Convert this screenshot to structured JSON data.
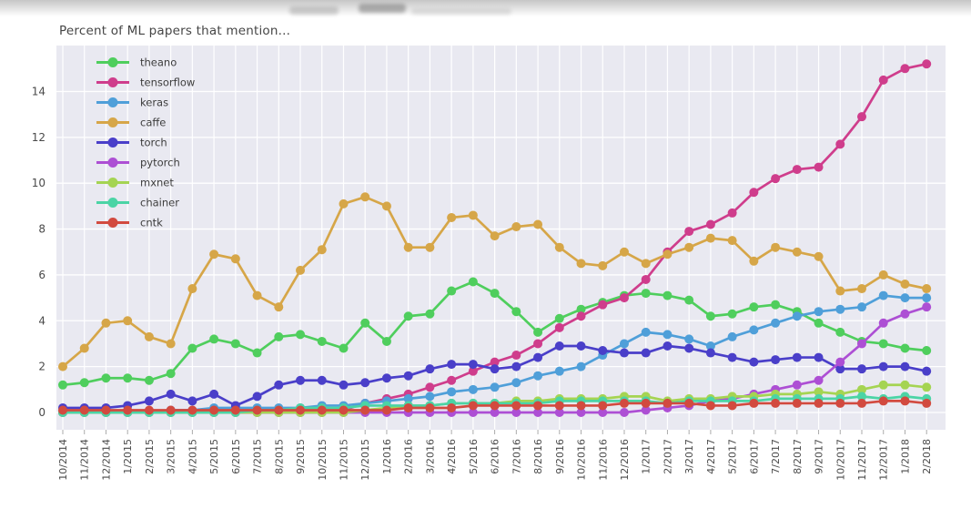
{
  "chart_data": {
    "type": "line",
    "title": "Percent of ML papers that mention...",
    "xlabel": "",
    "ylabel": "",
    "y_ticks": [
      0,
      2,
      4,
      6,
      8,
      10,
      12,
      14
    ],
    "ylim": [
      -0.75,
      16
    ],
    "grid": true,
    "legend_position": "upper left",
    "plot_bg_color": "#e9e9f1",
    "grid_color": "#ffffff",
    "tick_label_color": "#4a4a4a",
    "legend_text_color": "#3d3d3d",
    "categories": [
      "10/2014",
      "11/2014",
      "12/2014",
      "1/2015",
      "2/2015",
      "3/2015",
      "4/2015",
      "5/2015",
      "6/2015",
      "7/2015",
      "8/2015",
      "9/2015",
      "10/2015",
      "11/2015",
      "12/2015",
      "1/2016",
      "2/2016",
      "3/2016",
      "4/2016",
      "5/2016",
      "6/2016",
      "7/2016",
      "8/2016",
      "9/2016",
      "10/2016",
      "11/2016",
      "12/2016",
      "1/2017",
      "2/2017",
      "3/2017",
      "4/2017",
      "5/2017",
      "6/2017",
      "7/2017",
      "8/2017",
      "9/2017",
      "10/2017",
      "11/2017",
      "12/2017",
      "1/2018",
      "2/2018"
    ],
    "series": [
      {
        "name": "theano",
        "color": "#4fce5d",
        "values": [
          1.2,
          1.3,
          1.5,
          1.5,
          1.4,
          1.7,
          2.8,
          3.2,
          3.0,
          2.6,
          3.3,
          3.4,
          3.1,
          2.8,
          3.9,
          3.1,
          4.2,
          4.3,
          5.3,
          5.7,
          5.2,
          4.4,
          3.5,
          4.1,
          4.5,
          4.8,
          5.1,
          5.2,
          5.1,
          4.9,
          4.2,
          4.3,
          4.6,
          4.7,
          4.4,
          3.9,
          3.5,
          3.1,
          3.0,
          2.8,
          2.7
        ]
      },
      {
        "name": "tensorflow",
        "color": "#cf3d8c",
        "values": [
          0,
          0,
          0,
          0,
          0,
          0,
          0,
          0,
          0,
          0,
          0,
          0,
          0,
          0.1,
          0.4,
          0.6,
          0.8,
          1.1,
          1.4,
          1.8,
          2.2,
          2.5,
          3.0,
          3.7,
          4.2,
          4.7,
          5.0,
          5.8,
          7.0,
          7.9,
          8.2,
          8.7,
          9.6,
          10.2,
          10.6,
          10.7,
          11.7,
          12.9,
          14.5,
          15.0,
          15.2
        ]
      },
      {
        "name": "keras",
        "color": "#4f9fd9",
        "values": [
          0,
          0,
          0,
          0,
          0,
          0.1,
          0.1,
          0.2,
          0.2,
          0.2,
          0.2,
          0.2,
          0.3,
          0.3,
          0.4,
          0.5,
          0.6,
          0.7,
          0.9,
          1.0,
          1.1,
          1.3,
          1.6,
          1.8,
          2.0,
          2.5,
          3.0,
          3.5,
          3.4,
          3.2,
          2.9,
          3.3,
          3.6,
          3.9,
          4.2,
          4.4,
          4.5,
          4.6,
          5.1,
          5.0,
          5.0
        ]
      },
      {
        "name": "caffe",
        "color": "#d6a648",
        "values": [
          2.0,
          2.8,
          3.9,
          4.0,
          3.3,
          3.0,
          5.4,
          6.9,
          6.7,
          5.1,
          4.6,
          6.2,
          7.1,
          9.1,
          9.4,
          9.0,
          7.2,
          7.2,
          8.5,
          8.6,
          7.7,
          8.1,
          8.2,
          7.2,
          6.5,
          6.4,
          7.0,
          6.5,
          6.9,
          7.2,
          7.6,
          7.5,
          6.6,
          7.2,
          7.0,
          6.8,
          5.3,
          5.4,
          6.0,
          5.6,
          5.4
        ]
      },
      {
        "name": "torch",
        "color": "#4a3fc9",
        "values": [
          0.2,
          0.2,
          0.2,
          0.3,
          0.5,
          0.8,
          0.5,
          0.8,
          0.3,
          0.7,
          1.2,
          1.4,
          1.4,
          1.2,
          1.3,
          1.5,
          1.6,
          1.9,
          2.1,
          2.1,
          1.9,
          2.0,
          2.4,
          2.9,
          2.9,
          2.7,
          2.6,
          2.6,
          2.9,
          2.8,
          2.6,
          2.4,
          2.2,
          2.3,
          2.4,
          2.4,
          1.9,
          1.9,
          2.0,
          2.0,
          1.8
        ]
      },
      {
        "name": "pytorch",
        "color": "#ad4fd4",
        "values": [
          0,
          0,
          0,
          0,
          0,
          0,
          0,
          0,
          0,
          0,
          0,
          0,
          0,
          0,
          0,
          0,
          0,
          0,
          0,
          0,
          0,
          0,
          0,
          0,
          0,
          0,
          0,
          0.1,
          0.2,
          0.3,
          0.5,
          0.6,
          0.8,
          1.0,
          1.2,
          1.4,
          2.2,
          3.0,
          3.9,
          4.3,
          4.6
        ]
      },
      {
        "name": "mxnet",
        "color": "#a5d452",
        "values": [
          0,
          0,
          0,
          0,
          0,
          0,
          0,
          0,
          0,
          0,
          0,
          0,
          0,
          0,
          0.1,
          0.2,
          0.3,
          0.3,
          0.4,
          0.4,
          0.4,
          0.5,
          0.5,
          0.6,
          0.6,
          0.6,
          0.7,
          0.7,
          0.5,
          0.6,
          0.6,
          0.7,
          0.7,
          0.8,
          0.8,
          0.9,
          0.8,
          1.0,
          1.2,
          1.2,
          1.1
        ]
      },
      {
        "name": "chainer",
        "color": "#4bd4a5",
        "values": [
          0,
          0,
          0,
          0,
          0,
          0,
          0,
          0,
          0,
          0.1,
          0.1,
          0.2,
          0.2,
          0.2,
          0.3,
          0.3,
          0.3,
          0.3,
          0.4,
          0.4,
          0.4,
          0.4,
          0.4,
          0.5,
          0.5,
          0.5,
          0.5,
          0.5,
          0.4,
          0.5,
          0.5,
          0.5,
          0.5,
          0.6,
          0.6,
          0.6,
          0.6,
          0.7,
          0.6,
          0.7,
          0.6
        ]
      },
      {
        "name": "cntk",
        "color": "#d24a3f",
        "values": [
          0.1,
          0.1,
          0.1,
          0.1,
          0.1,
          0.1,
          0.1,
          0.1,
          0.1,
          0.1,
          0.1,
          0.1,
          0.1,
          0.1,
          0.1,
          0.1,
          0.2,
          0.2,
          0.2,
          0.3,
          0.3,
          0.3,
          0.3,
          0.3,
          0.3,
          0.3,
          0.4,
          0.4,
          0.4,
          0.4,
          0.3,
          0.3,
          0.4,
          0.4,
          0.4,
          0.4,
          0.4,
          0.4,
          0.5,
          0.5,
          0.4
        ]
      }
    ]
  }
}
